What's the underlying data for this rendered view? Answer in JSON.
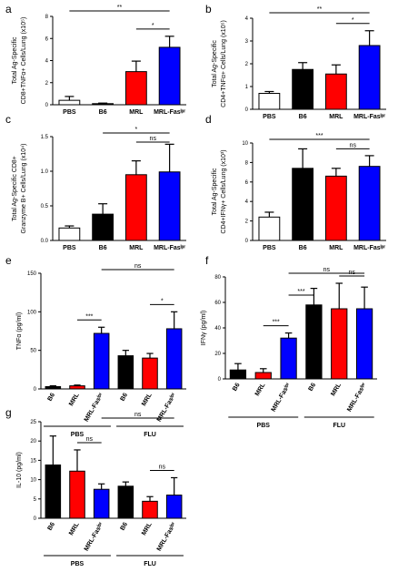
{
  "colors": {
    "white": "#ffffff",
    "black": "#000000",
    "red": "#ff0000",
    "blue": "#0000ff"
  },
  "chart_data": [
    {
      "id": "a",
      "letter": "a",
      "type": "bar",
      "ylabel_lines": [
        "Total Ag-Specific",
        "CD8+TNFα+ Cells/Lung (x10⁵)"
      ],
      "ylim": [
        0,
        8
      ],
      "yticks": [
        "0",
        "2",
        "4",
        "6",
        "8"
      ],
      "categories": [
        "PBS",
        "B6",
        "MRL",
        "MRL-Fasˡᵖʳ"
      ],
      "values": [
        0.4,
        0.1,
        3.0,
        5.2
      ],
      "errors": [
        0.35,
        0.05,
        0.95,
        1.0
      ],
      "colors": [
        "white",
        "black",
        "red",
        "blue"
      ],
      "significance": [
        {
          "from": 0,
          "to": 3,
          "label": "**"
        },
        {
          "from": 2,
          "to": 3,
          "label": "*"
        }
      ]
    },
    {
      "id": "b",
      "letter": "b",
      "type": "bar",
      "ylabel_lines": [
        "Total Ag-Specific",
        "CD4+TNFα+ Cells/Lung (x10⁵)"
      ],
      "ylim": [
        0,
        4
      ],
      "yticks": [
        "0",
        "1",
        "2",
        "3",
        "4"
      ],
      "categories": [
        "PBS",
        "B6",
        "MRL",
        "MRL-Fasˡᵖʳ"
      ],
      "values": [
        0.7,
        1.75,
        1.55,
        2.8
      ],
      "errors": [
        0.08,
        0.3,
        0.4,
        0.65
      ],
      "colors": [
        "white",
        "black",
        "red",
        "blue"
      ],
      "significance": [
        {
          "from": 0,
          "to": 3,
          "label": "**"
        },
        {
          "from": 2,
          "to": 3,
          "label": "*"
        }
      ]
    },
    {
      "id": "c",
      "letter": "c",
      "type": "bar",
      "ylabel_lines": [
        "Total Ag-Specific CD8+",
        "Granzyme B+ Cells/Lung (x10⁴)"
      ],
      "ylim": [
        0,
        1.5
      ],
      "yticks": [
        "0.0",
        "0.5",
        "1.0",
        "1.5"
      ],
      "categories": [
        "PBS",
        "B6",
        "MRL",
        "MRL-Fasˡᵖʳ"
      ],
      "values": [
        0.18,
        0.38,
        0.95,
        0.99
      ],
      "errors": [
        0.03,
        0.15,
        0.2,
        0.4
      ],
      "colors": [
        "white",
        "black",
        "red",
        "blue"
      ],
      "significance": [
        {
          "from": 1,
          "to": 3,
          "label": "*"
        },
        {
          "from": 2,
          "to": 3,
          "label": "ns"
        }
      ]
    },
    {
      "id": "d",
      "letter": "d",
      "type": "bar",
      "ylabel_lines": [
        "Total Ag-Specific",
        "CD4+IFNγ+ Cells/Lung (x10³)"
      ],
      "ylim": [
        0,
        10
      ],
      "yticks": [
        "0",
        "2",
        "4",
        "6",
        "8",
        "10"
      ],
      "categories": [
        "PBS",
        "B6",
        "MRL",
        "MRL-Fasˡᵖʳ"
      ],
      "values": [
        2.4,
        7.4,
        6.6,
        7.6
      ],
      "errors": [
        0.5,
        2.0,
        0.8,
        1.1
      ],
      "colors": [
        "white",
        "black",
        "red",
        "blue"
      ],
      "significance": [
        {
          "from": 0,
          "to": 3,
          "label": "***"
        },
        {
          "from": 2,
          "to": 3,
          "label": "ns"
        }
      ]
    },
    {
      "id": "e",
      "letter": "e",
      "type": "bar",
      "ylabel_lines": [
        "TNFα (pg/ml)"
      ],
      "ylim": [
        0,
        150
      ],
      "yticks": [
        "0",
        "50",
        "100",
        "150"
      ],
      "categories": [
        "B6",
        "MRL",
        "MRL-Fasˡᵖʳ",
        "B6",
        "MRL",
        "MRL-Fasˡᵖʳ"
      ],
      "values": [
        3,
        4,
        72,
        43,
        40,
        78
      ],
      "errors": [
        1,
        1,
        8,
        7,
        6,
        22
      ],
      "colors": [
        "black",
        "red",
        "blue",
        "black",
        "red",
        "blue"
      ],
      "groups": [
        {
          "label": "PBS",
          "start": 0,
          "end": 2
        },
        {
          "label": "FLU",
          "start": 3,
          "end": 5
        }
      ],
      "significance": [
        {
          "from": 1,
          "to": 2,
          "label": "***"
        },
        {
          "from": 2,
          "to": 5,
          "label": "ns"
        },
        {
          "from": 4,
          "to": 5,
          "label": "*"
        }
      ]
    },
    {
      "id": "f",
      "letter": "f",
      "type": "bar",
      "ylabel_lines": [
        "IFNγ (pg/ml)"
      ],
      "ylim": [
        0,
        80
      ],
      "yticks": [
        "0",
        "20",
        "40",
        "60",
        "80"
      ],
      "categories": [
        "B6",
        "MRL",
        "MRL-Fasˡᵖʳ",
        "B6",
        "MRL",
        "MRL-Fasˡᵖʳ"
      ],
      "values": [
        7,
        5,
        32,
        58,
        55,
        55
      ],
      "errors": [
        5,
        3,
        4,
        13,
        20,
        17
      ],
      "colors": [
        "black",
        "red",
        "blue",
        "black",
        "red",
        "blue"
      ],
      "groups": [
        {
          "label": "PBS",
          "start": 0,
          "end": 2
        },
        {
          "label": "FLU",
          "start": 3,
          "end": 5
        }
      ],
      "significance": [
        {
          "from": 1,
          "to": 2,
          "label": "***"
        },
        {
          "from": 2,
          "to": 3,
          "label": "***"
        },
        {
          "from": 2,
          "to": 5,
          "label": "ns"
        },
        {
          "from": 4,
          "to": 5,
          "label": "ns"
        }
      ]
    },
    {
      "id": "g",
      "letter": "g",
      "type": "bar",
      "ylabel_lines": [
        "IL-10 (pg/ml)"
      ],
      "ylim": [
        0,
        25
      ],
      "yticks": [
        "0",
        "5",
        "10",
        "15",
        "20",
        "25"
      ],
      "categories": [
        "B6",
        "MRL",
        "MRL-Fasˡᵖʳ",
        "B6",
        "MRL",
        "MRL-Fasˡᵖʳ"
      ],
      "values": [
        13.8,
        12.2,
        7.5,
        8.3,
        4.4,
        6.0
      ],
      "errors": [
        7.5,
        5.5,
        1.4,
        1.1,
        1.2,
        4.5
      ],
      "colors": [
        "black",
        "red",
        "blue",
        "black",
        "red",
        "blue"
      ],
      "groups": [
        {
          "label": "PBS",
          "start": 0,
          "end": 2
        },
        {
          "label": "FLU",
          "start": 3,
          "end": 5
        }
      ],
      "significance": [
        {
          "from": 1,
          "to": 2,
          "label": "ns"
        },
        {
          "from": 2,
          "to": 5,
          "label": "ns"
        },
        {
          "from": 4,
          "to": 5,
          "label": "ns"
        }
      ]
    }
  ]
}
